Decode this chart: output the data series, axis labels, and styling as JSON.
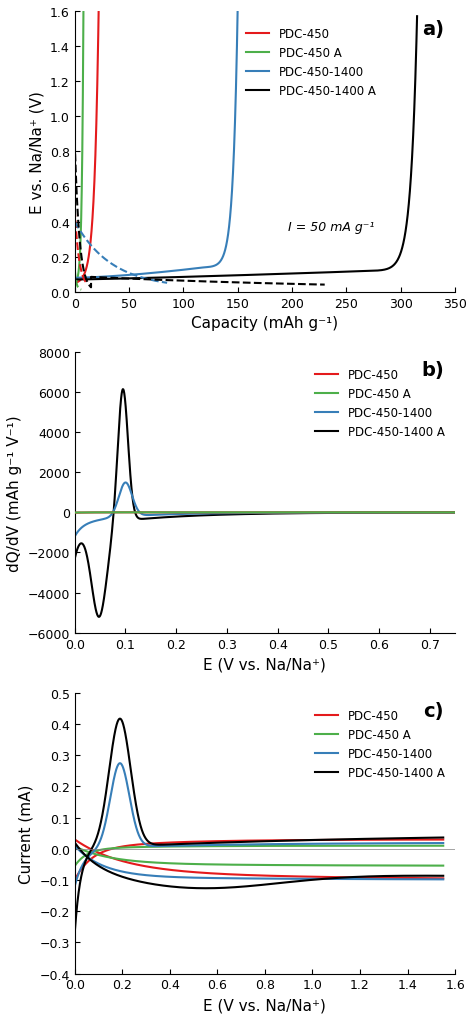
{
  "fig_width": 4.74,
  "fig_height": 10.2,
  "dpi": 100,
  "colors": {
    "red": "#e41a1c",
    "green": "#4daf4a",
    "blue": "#377eb8",
    "black": "#000000"
  },
  "panel_a": {
    "label": "a)",
    "xlabel": "Capacity (mAh g⁻¹)",
    "ylabel": "E vs. Na/Na⁺ (V)",
    "xlim": [
      0,
      350
    ],
    "ylim": [
      0,
      1.6
    ],
    "xticks": [
      0,
      50,
      100,
      150,
      200,
      250,
      300,
      350
    ],
    "yticks": [
      0.0,
      0.2,
      0.4,
      0.6,
      0.8,
      1.0,
      1.2,
      1.4,
      1.6
    ],
    "annotation": "I = 50 mA g⁻¹",
    "legend_labels": [
      "PDC-450",
      "PDC-450 A",
      "PDC-450-1400",
      "PDC-450-1400 A"
    ]
  },
  "panel_b": {
    "label": "b)",
    "xlabel": "E (V vs. Na/Na⁺)",
    "ylabel": "dQ/dV (mAh g⁻¹ V⁻¹)",
    "xlim": [
      0,
      0.75
    ],
    "ylim": [
      -6000,
      8000
    ],
    "xticks": [
      0.0,
      0.1,
      0.2,
      0.3,
      0.4,
      0.5,
      0.6,
      0.7
    ],
    "yticks": [
      -6000,
      -4000,
      -2000,
      0,
      2000,
      4000,
      6000,
      8000
    ],
    "legend_labels": [
      "PDC-450",
      "PDC-450 A",
      "PDC-450-1400",
      "PDC-450-1400 A"
    ]
  },
  "panel_c": {
    "label": "c)",
    "xlabel": "E (V vs. Na/Na⁺)",
    "ylabel": "Current (mA)",
    "xlim": [
      0,
      1.6
    ],
    "ylim": [
      -0.4,
      0.5
    ],
    "xticks": [
      0.0,
      0.2,
      0.4,
      0.6,
      0.8,
      1.0,
      1.2,
      1.4,
      1.6
    ],
    "yticks": [
      -0.4,
      -0.3,
      -0.2,
      -0.1,
      0.0,
      0.1,
      0.2,
      0.3,
      0.4,
      0.5
    ],
    "legend_labels": [
      "PDC-450",
      "PDC-450 A",
      "PDC-450-1400",
      "PDC-450-1400 A"
    ]
  }
}
